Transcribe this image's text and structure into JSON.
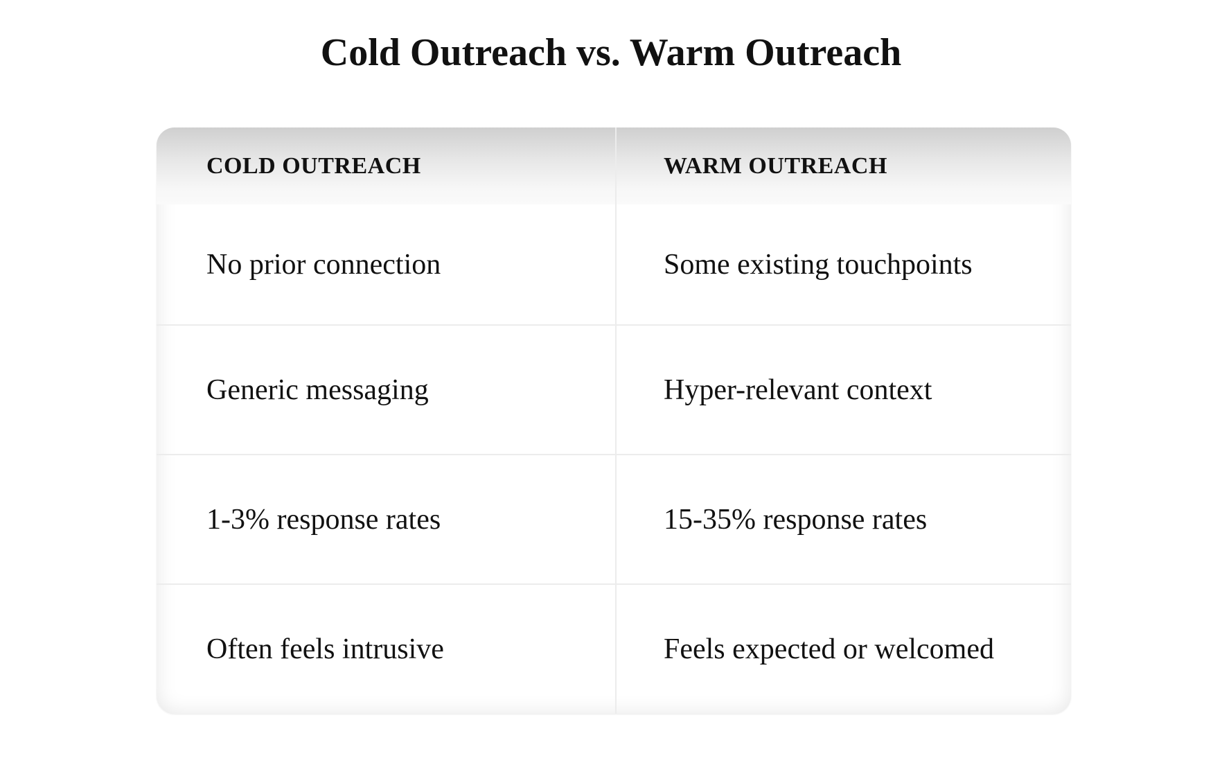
{
  "title": "Cold Outreach vs. Warm Outreach",
  "table": {
    "headers": [
      "COLD OUTREACH",
      "WARM OUTREACH"
    ],
    "rows": [
      [
        "No prior connection",
        "Some existing touchpoints"
      ],
      [
        "Generic messaging",
        "Hyper-relevant context"
      ],
      [
        "1-3% response rates",
        "15-35% response rates"
      ],
      [
        "Often feels intrusive",
        "Feels expected or welcomed"
      ]
    ]
  }
}
